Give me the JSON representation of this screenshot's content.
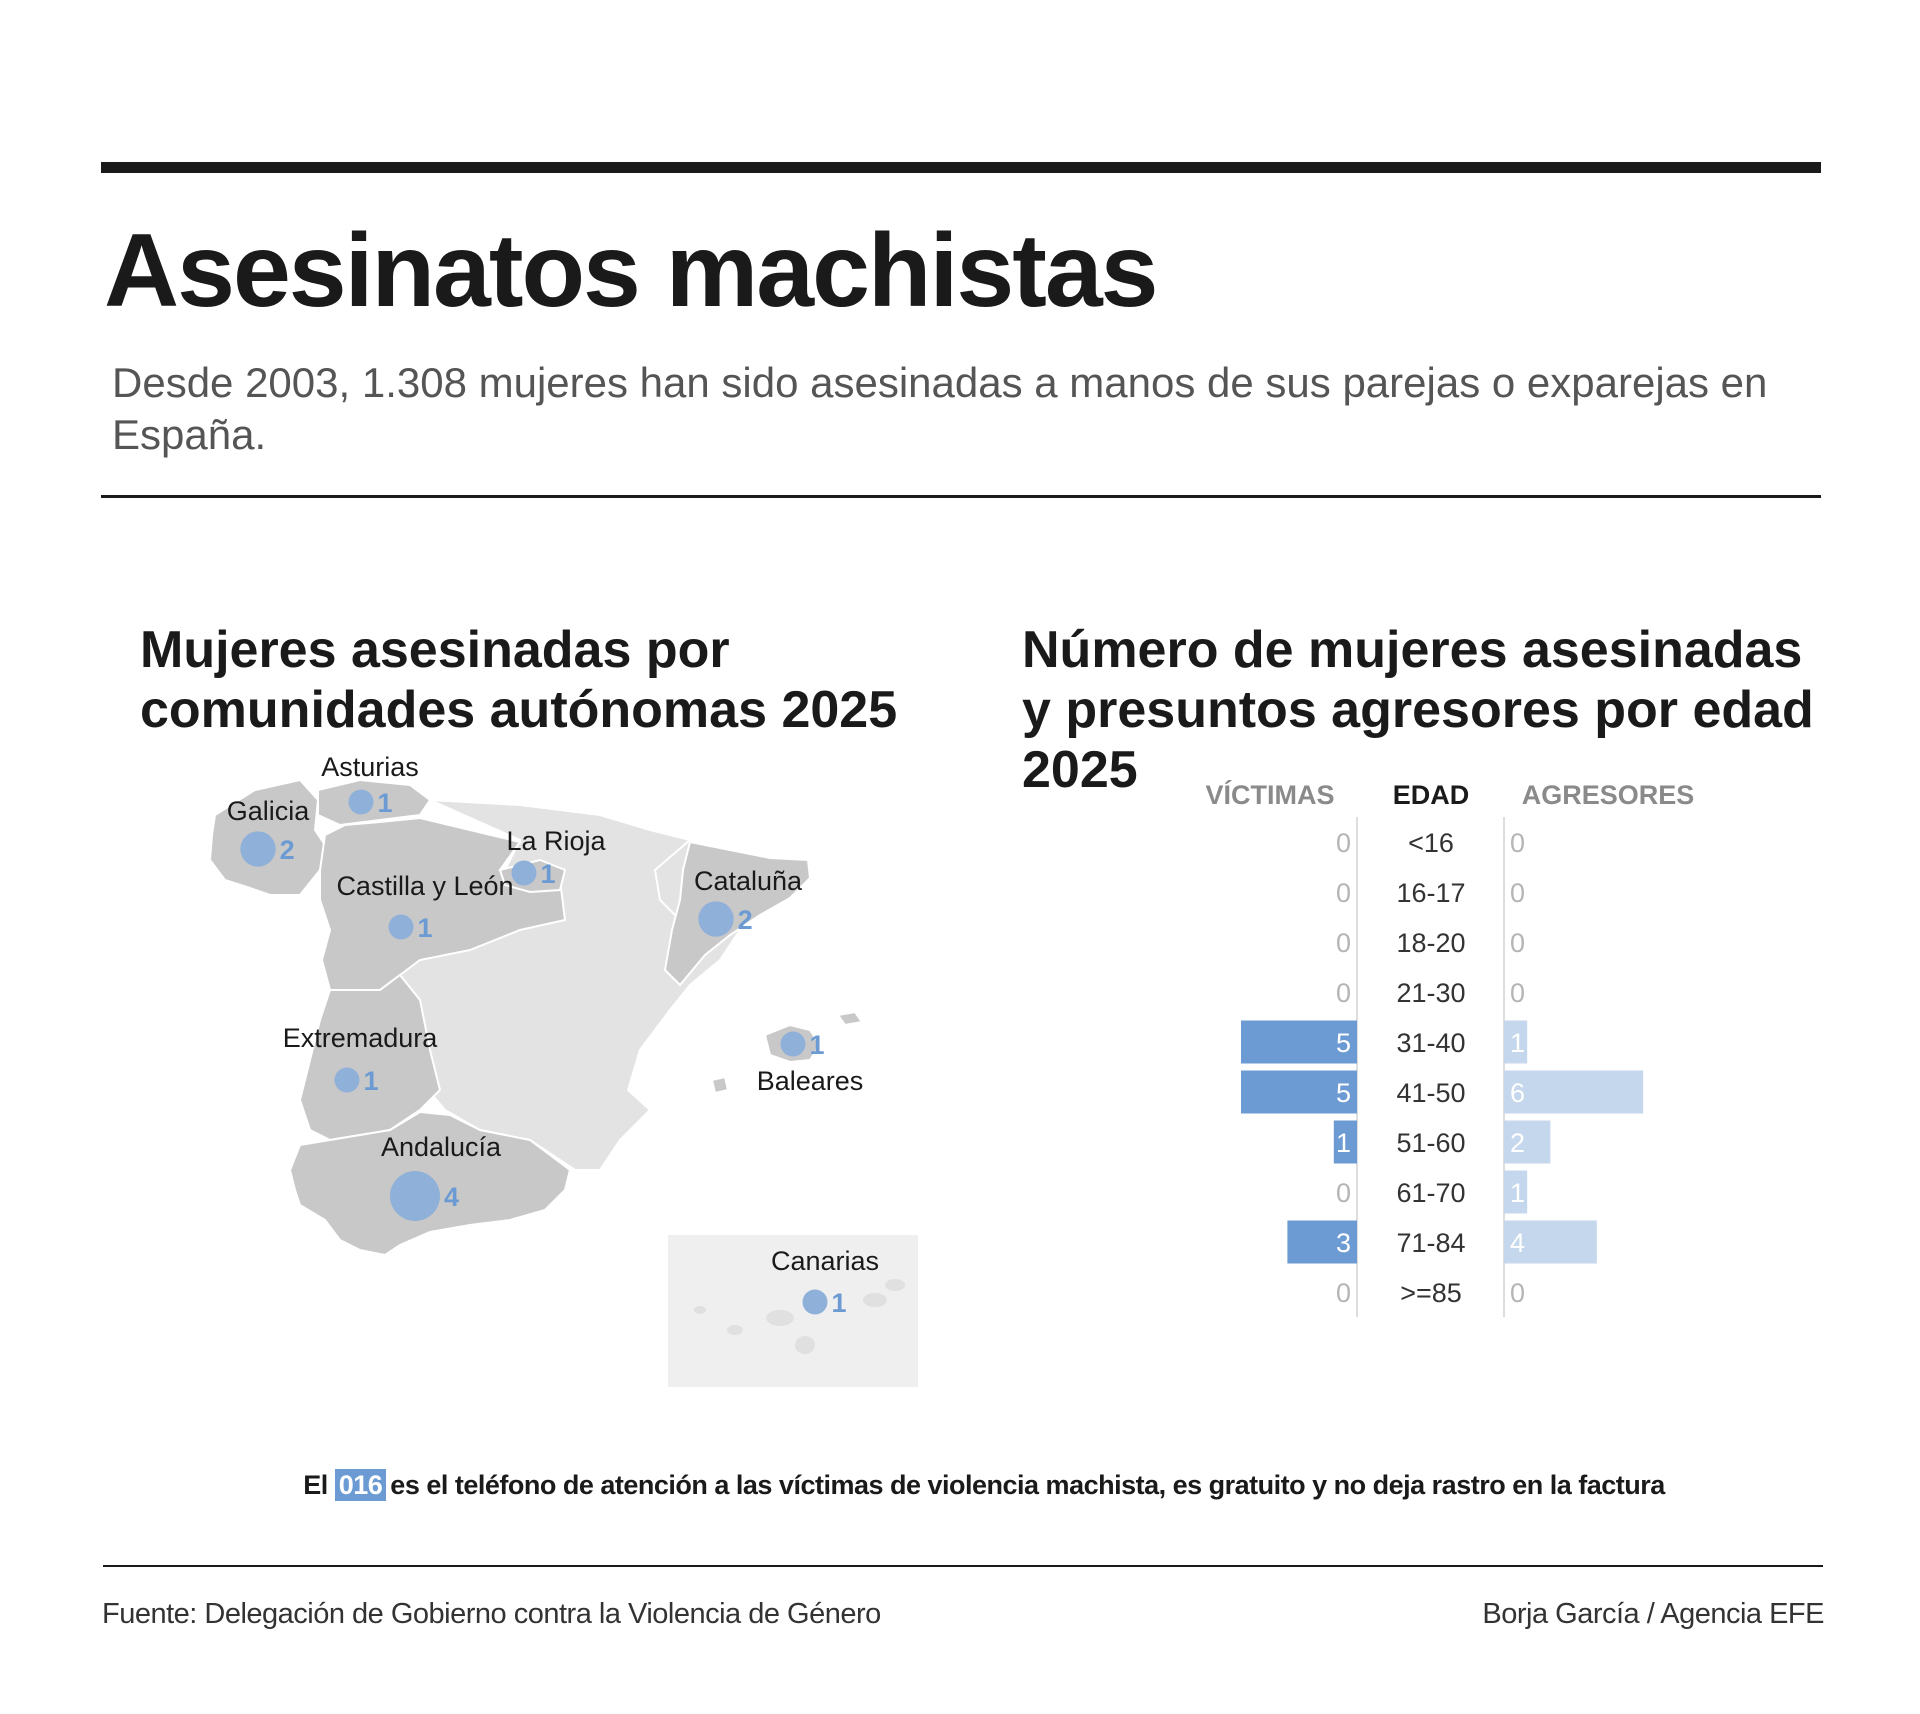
{
  "header": {
    "title": "Asesinatos machistas",
    "subtitle": "Desde 2003, 1.308 mujeres han sido asesinadas a manos de sus parejas o exparejas en España."
  },
  "map": {
    "title_line1": "Mujeres asesinadas por",
    "title_line2": "comunidades autónomas 2025"
  },
  "age": {
    "title_line1": "Número de mujeres asesinadas",
    "title_line2": "y presuntos agresores por edad",
    "title_line3": "2025"
  },
  "footer": {
    "note_prefix": "El",
    "note_highlight": "016",
    "note_rest": "es el teléfono de atención a las víctimas de violencia machista, es gratuito y no deja rastro en la factura",
    "source": "Fuente: Delegación de Gobierno contra la Violencia de Género",
    "credit": "Borja García / Agencia EFE"
  },
  "colors": {
    "victims": "#6b9bd2",
    "aggressors": "#c5d7ec",
    "bubble": "#8fb0d8",
    "highlighted_region": "#c8c8c8",
    "other_region": "#e3e3e3",
    "canarias_box": "#efefef"
  },
  "chart_data": [
    {
      "type": "bubble_map",
      "regions": [
        {
          "name": "Asturias",
          "value": 1
        },
        {
          "name": "Galicia",
          "value": 2
        },
        {
          "name": "La Rioja",
          "value": 1
        },
        {
          "name": "Castilla y León",
          "value": 1
        },
        {
          "name": "Cataluña",
          "value": 2
        },
        {
          "name": "Extremadura",
          "value": 1
        },
        {
          "name": "Baleares",
          "value": 1
        },
        {
          "name": "Andalucía",
          "value": 4
        },
        {
          "name": "Canarias",
          "value": 1
        }
      ]
    },
    {
      "type": "bar",
      "orientation": "horizontal-butterfly",
      "column_headers": {
        "left": "VÍCTIMAS",
        "center": "EDAD",
        "right": "AGRESORES"
      },
      "categories": [
        "<16",
        "16-17",
        "18-20",
        "21-30",
        "31-40",
        "41-50",
        "51-60",
        "61-70",
        "71-84",
        ">=85"
      ],
      "series": [
        {
          "name": "VÍCTIMAS",
          "values": [
            0,
            0,
            0,
            0,
            5,
            5,
            1,
            0,
            3,
            0
          ]
        },
        {
          "name": "AGRESORES",
          "values": [
            0,
            0,
            0,
            0,
            1,
            6,
            2,
            1,
            4,
            0
          ]
        }
      ]
    }
  ]
}
